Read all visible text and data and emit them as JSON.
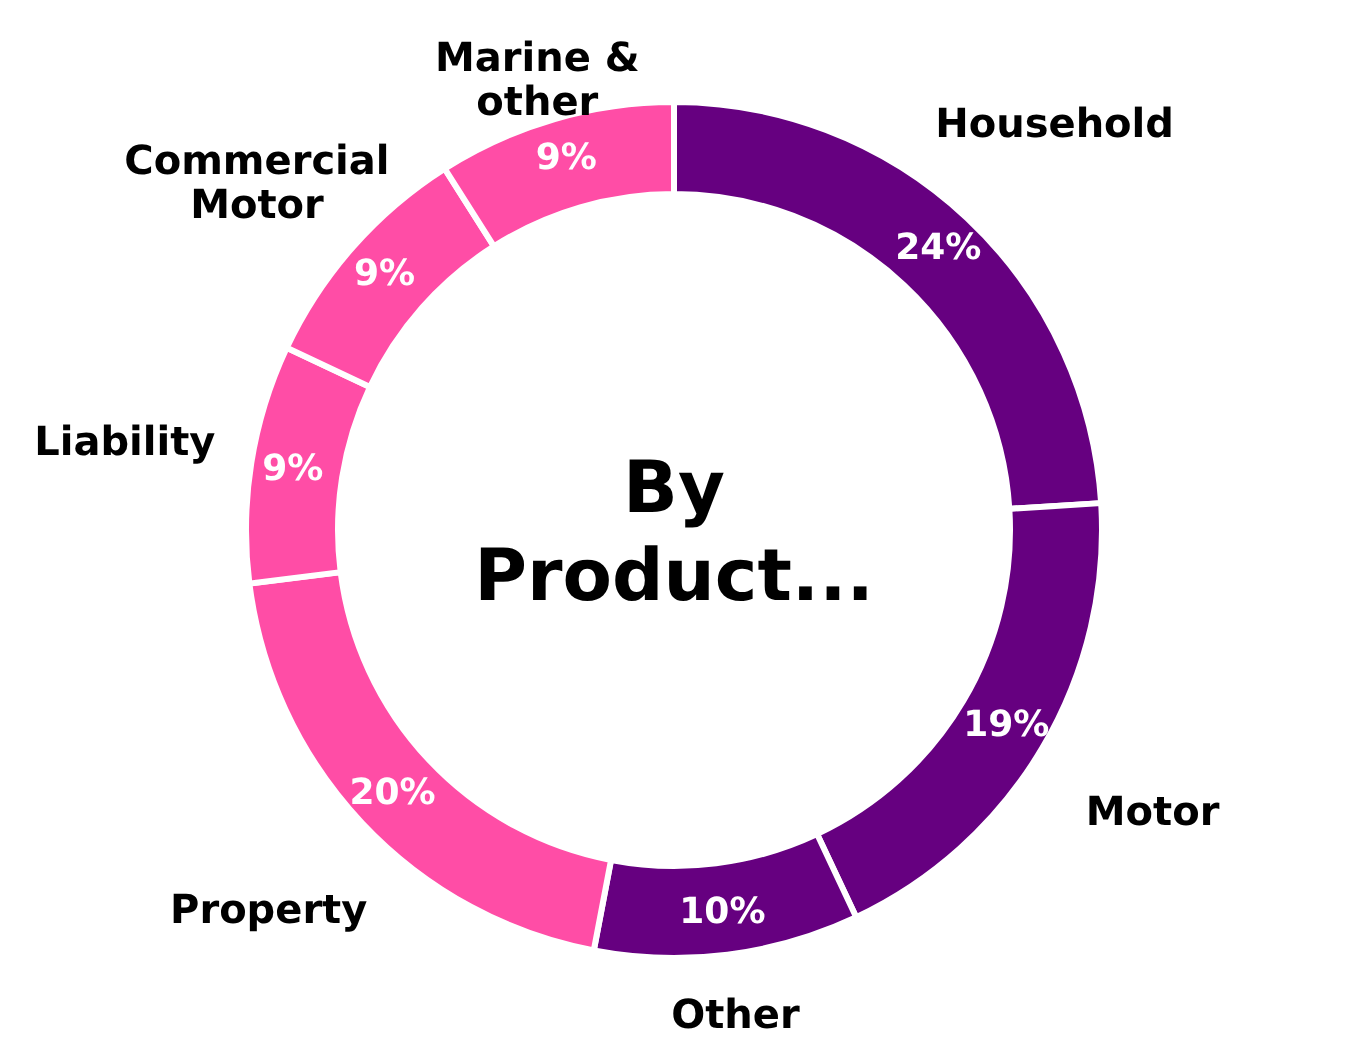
{
  "chart_data": {
    "type": "donut",
    "title": "By Product...",
    "categories": [
      "Household",
      "Motor",
      "Other",
      "Property",
      "Liability",
      "Commercial Motor",
      "Marine & other"
    ],
    "values": [
      24,
      19,
      10,
      20,
      9,
      9,
      9
    ],
    "value_labels": [
      "24%",
      "19%",
      "10%",
      "20%",
      "9%",
      "9%",
      "9%"
    ],
    "colors": [
      "#660080",
      "#660080",
      "#660080",
      "#ff4da6",
      "#ff4da6",
      "#ff4da6",
      "#ff4da6"
    ]
  }
}
